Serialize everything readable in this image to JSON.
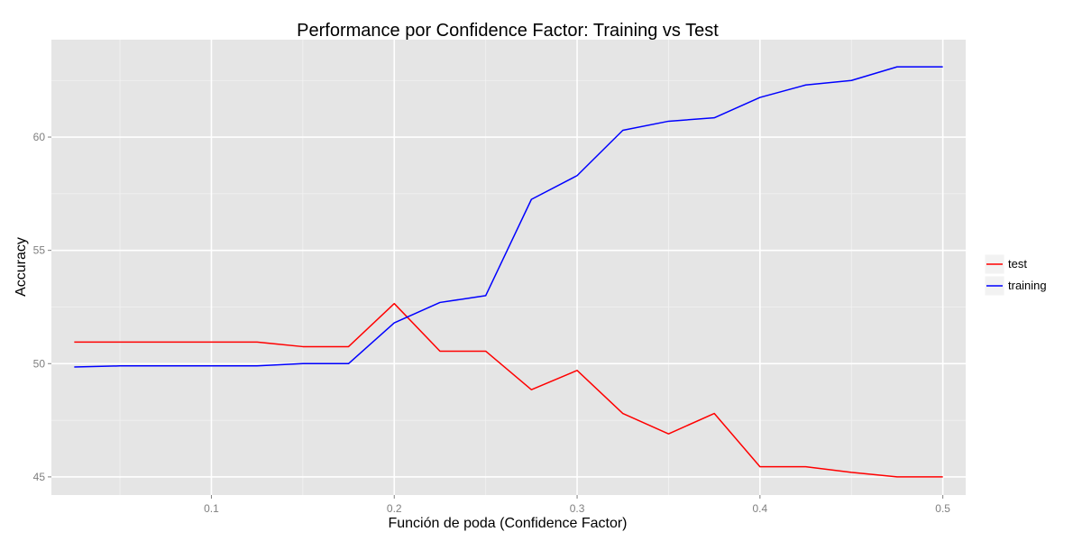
{
  "chart_data": {
    "type": "line",
    "title": "Performance por Confidence Factor: Training vs Test",
    "xlabel": "Función de poda (Confidence Factor)",
    "ylabel": "Accuracy",
    "xlim": [
      0.0125,
      0.5125
    ],
    "ylim": [
      44.2,
      64.3
    ],
    "x_ticks": [
      0.1,
      0.2,
      0.3,
      0.4,
      0.5
    ],
    "x_tick_labels": [
      "0.1",
      "0.2",
      "0.3",
      "0.4",
      "0.5"
    ],
    "y_ticks": [
      45,
      50,
      55,
      60
    ],
    "y_tick_labels": [
      "45",
      "50",
      "55",
      "60"
    ],
    "grid": true,
    "legend_position": "right",
    "x": [
      0.025,
      0.05,
      0.075,
      0.1,
      0.125,
      0.15,
      0.175,
      0.2,
      0.225,
      0.25,
      0.275,
      0.3,
      0.325,
      0.35,
      0.375,
      0.4,
      0.425,
      0.45,
      0.475,
      0.5
    ],
    "series": [
      {
        "name": "test",
        "color": "#ff0000",
        "values": [
          50.95,
          50.95,
          50.95,
          50.95,
          50.95,
          50.75,
          50.75,
          52.65,
          50.55,
          50.55,
          48.85,
          49.7,
          47.8,
          46.9,
          47.8,
          45.45,
          45.45,
          45.2,
          45.0,
          45.0
        ]
      },
      {
        "name": "training",
        "color": "#0000ff",
        "values": [
          49.85,
          49.9,
          49.9,
          49.9,
          49.9,
          50.0,
          50.0,
          51.8,
          52.7,
          53.0,
          57.25,
          58.3,
          60.3,
          60.7,
          60.85,
          61.75,
          62.3,
          62.5,
          63.1,
          63.1
        ]
      }
    ]
  }
}
